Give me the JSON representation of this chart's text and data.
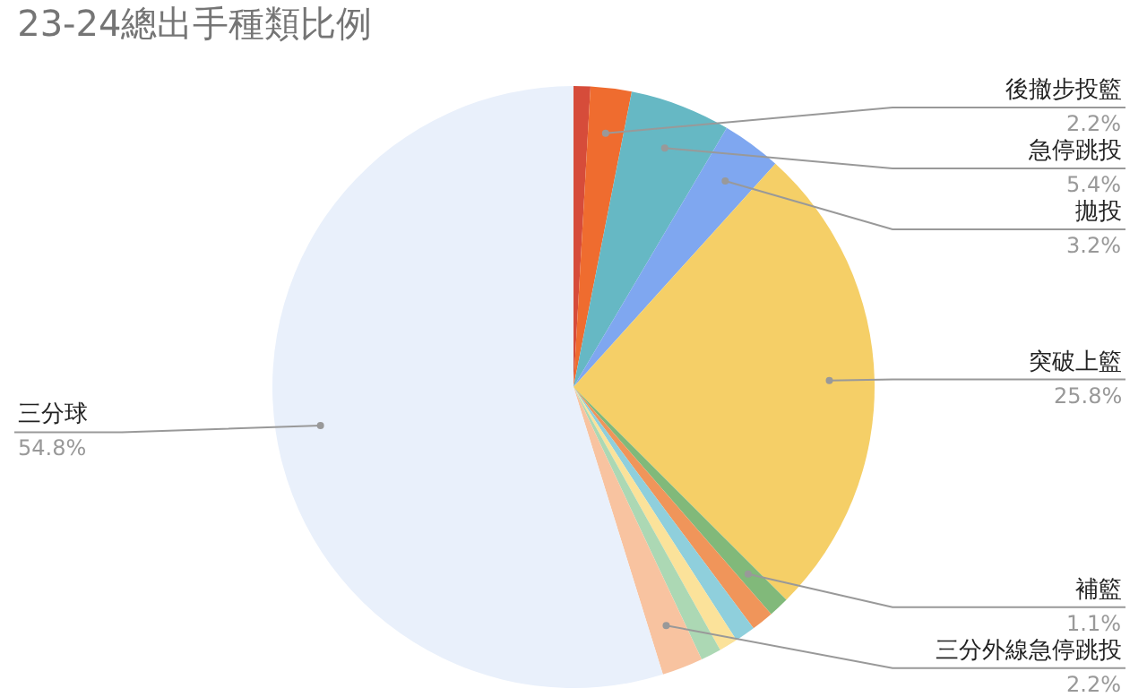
{
  "chart_data": {
    "type": "pie",
    "title": "23-24總出手種類比例",
    "categories": [
      null,
      "後撤步投籃",
      "急停跳投",
      "拋投",
      "突破上籃",
      "補籃",
      null,
      null,
      null,
      null,
      "三分外線急停跳投",
      "三分球"
    ],
    "values": [
      0.9,
      2.2,
      5.4,
      3.2,
      25.8,
      1.1,
      1.2,
      1.1,
      1.0,
      1.1,
      2.2,
      54.8
    ],
    "value_labels": [
      null,
      "2.2%",
      "5.4%",
      "3.2%",
      "25.8%",
      "1.1%",
      null,
      null,
      null,
      null,
      "2.2%",
      "54.8%"
    ],
    "colors": [
      "#d64c3a",
      "#ef6c2f",
      "#66b8c4",
      "#7fa7f0",
      "#f5cf67",
      "#81b97a",
      "#f0955a",
      "#8fcfdc",
      "#fbe29a",
      "#acd8b4",
      "#f8c3a0",
      "#e9f0fb"
    ],
    "legend": false
  }
}
